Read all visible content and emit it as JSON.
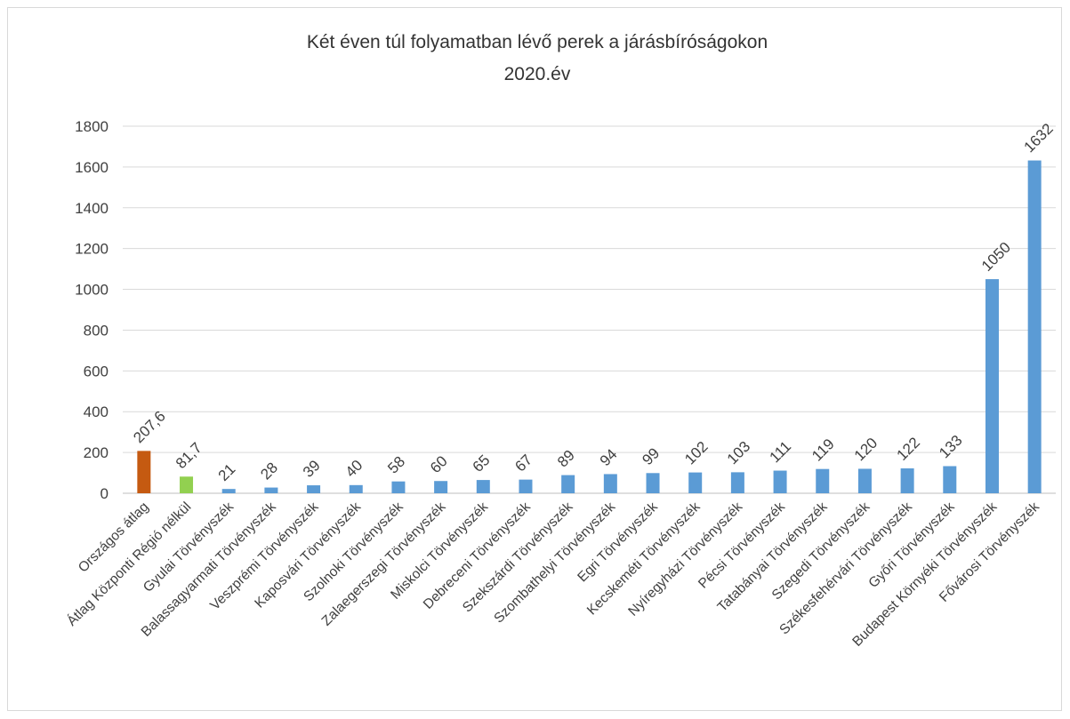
{
  "chart_data": {
    "type": "bar",
    "title": [
      "Két éven túl folyamatban lévő perek a járásbíróságokon",
      "2020.év"
    ],
    "xlabel": "",
    "ylabel": "",
    "ylim": [
      0,
      1800
    ],
    "yticks": [
      0,
      200,
      400,
      600,
      800,
      1000,
      1200,
      1400,
      1600,
      1800
    ],
    "grid": true,
    "legend": "none",
    "categories": [
      "Országos átlag",
      "Átlag Központi Régió nélkül",
      "Gyulai Törvényszék",
      "Balassagyarmati Törvényszék",
      "Veszprémi Törvényszék",
      "Kaposvári Törvényszék",
      "Szolnoki Törvényszék",
      "Zalaegerszegi Törvényszék",
      "Miskolci Törvényszék",
      "Debreceni Törvényszék",
      "Szekszárdi Törvényszék",
      "Szombathelyi Törvényszék",
      "Egri Törvényszék",
      "Kecskeméti Törvényszék",
      "Nyíregyházi Törvényszék",
      "Pécsi Törvényszék",
      "Tatabányai Törvényszék",
      "Szegedi Törvényszék",
      "Székesfehérvári Törvényszék",
      "Győri Törvényszék",
      "Budapest Környéki Törvényszék",
      "Fővárosi Törvényszék"
    ],
    "values": [
      207.6,
      81.7,
      21,
      28,
      39,
      40,
      58,
      60,
      65,
      67,
      89,
      94,
      99,
      102,
      103,
      111,
      119,
      120,
      122,
      133,
      1050,
      1632
    ],
    "value_labels": [
      "207,6",
      "81,7",
      "21",
      "28",
      "39",
      "40",
      "58",
      "60",
      "65",
      "67",
      "89",
      "94",
      "99",
      "102",
      "103",
      "111",
      "119",
      "120",
      "122",
      "133",
      "1050",
      "1632"
    ],
    "bar_colors": [
      "#c55a11",
      "#92d050",
      "#5b9bd5",
      "#5b9bd5",
      "#5b9bd5",
      "#5b9bd5",
      "#5b9bd5",
      "#5b9bd5",
      "#5b9bd5",
      "#5b9bd5",
      "#5b9bd5",
      "#5b9bd5",
      "#5b9bd5",
      "#5b9bd5",
      "#5b9bd5",
      "#5b9bd5",
      "#5b9bd5",
      "#5b9bd5",
      "#5b9bd5",
      "#5b9bd5",
      "#5b9bd5",
      "#5b9bd5"
    ],
    "colors": {
      "gridline": "#d9d9d9",
      "axis": "#bfbfbf",
      "text": "#404040"
    }
  }
}
